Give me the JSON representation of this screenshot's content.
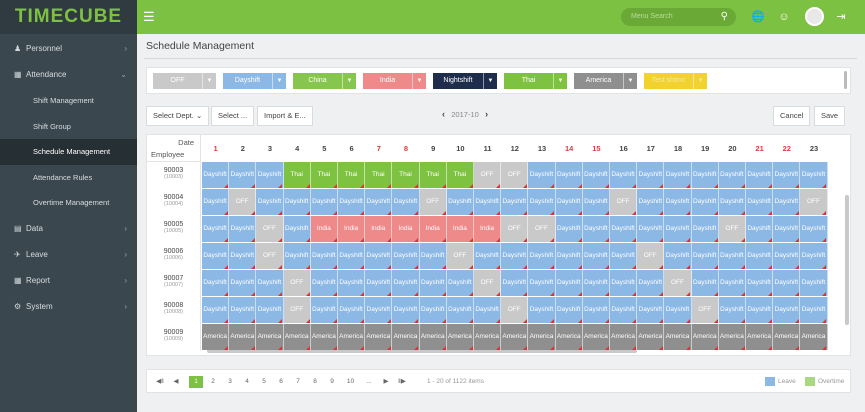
{
  "app": {
    "logo": "TIMECUBE",
    "search_placeholder": "Menu Search"
  },
  "sidebar": {
    "groups": [
      {
        "label": "Personnel",
        "icon": "person-icon"
      },
      {
        "label": "Attendance",
        "icon": "calendar-icon",
        "expanded": true,
        "items": [
          "Shift Management",
          "Shift Group",
          "Schedule Management",
          "Attendance Rules",
          "Overtime Management"
        ],
        "active_item": "Schedule Management"
      },
      {
        "label": "Data",
        "icon": "clipboard-icon"
      },
      {
        "label": "Leave",
        "icon": "plane-icon"
      },
      {
        "label": "Report",
        "icon": "table-icon"
      },
      {
        "label": "System",
        "icon": "gear-icon"
      }
    ]
  },
  "page": {
    "title": "Schedule Management"
  },
  "shifts": [
    {
      "label": "OFF",
      "color": "#c9c9c9"
    },
    {
      "label": "Dayshift",
      "color": "#8cb8e6"
    },
    {
      "label": "China",
      "color": "#86c54e"
    },
    {
      "label": "India",
      "color": "#ee8a8a"
    },
    {
      "label": "Nightshift",
      "color": "#1f2d4d"
    },
    {
      "label": "Thai",
      "color": "#7ec242"
    },
    {
      "label": "America",
      "color": "#8f8f8f"
    },
    {
      "label": "Test shtmc",
      "color": "#f2d22f"
    }
  ],
  "toolbar": {
    "dept_label": "Select Dept.",
    "select_label": "Select ...",
    "import_label": "Import & E...",
    "month": "2017-10",
    "cancel_label": "Cancel",
    "save_label": "Save"
  },
  "schedule": {
    "corner_date": "Date",
    "corner_employee": "Employee",
    "days": [
      "1",
      "2",
      "3",
      "4",
      "5",
      "6",
      "7",
      "8",
      "9",
      "10",
      "11",
      "12",
      "13",
      "14",
      "15",
      "16",
      "17",
      "18",
      "19",
      "20",
      "21",
      "22",
      "23"
    ],
    "weekend_days": [
      "1",
      "7",
      "8",
      "14",
      "15",
      "21",
      "22"
    ],
    "employees": [
      {
        "id": "90003",
        "sub": "(10003)"
      },
      {
        "id": "90004",
        "sub": "(10004)"
      },
      {
        "id": "90005",
        "sub": "(10005)"
      },
      {
        "id": "90006",
        "sub": "(10006)"
      },
      {
        "id": "90007",
        "sub": "(10007)"
      },
      {
        "id": "90008",
        "sub": "(10008)"
      },
      {
        "id": "90009",
        "sub": "(10009)"
      }
    ],
    "rows": [
      [
        "Dayshift",
        "Dayshift",
        "Dayshift",
        "Thai",
        "Thai",
        "Thai",
        "Thai",
        "Thai",
        "Thai",
        "Thai",
        "OFF",
        "OFF",
        "Dayshift",
        "Dayshift",
        "Dayshift",
        "Dayshift",
        "Dayshift",
        "Dayshift",
        "Dayshift",
        "Dayshift",
        "Dayshift",
        "Dayshift",
        "Dayshift"
      ],
      [
        "Dayshift",
        "OFF",
        "Dayshift",
        "Dayshift",
        "Dayshift",
        "Dayshift",
        "Dayshift",
        "Dayshift",
        "OFF",
        "Dayshift",
        "Dayshift",
        "Dayshift",
        "Dayshift",
        "Dayshift",
        "Dayshift",
        "OFF",
        "Dayshift",
        "Dayshift",
        "Dayshift",
        "Dayshift",
        "Dayshift",
        "Dayshift",
        "OFF"
      ],
      [
        "Dayshift",
        "Dayshift",
        "OFF",
        "Dayshift",
        "India",
        "India",
        "India",
        "India",
        "India",
        "India",
        "India",
        "OFF",
        "OFF",
        "Dayshift",
        "Dayshift",
        "Dayshift",
        "Dayshift",
        "Dayshift",
        "Dayshift",
        "OFF",
        "Dayshift",
        "Dayshift",
        "Dayshift"
      ],
      [
        "Dayshift",
        "Dayshift",
        "OFF",
        "Dayshift",
        "Dayshift",
        "Dayshift",
        "Dayshift",
        "Dayshift",
        "Dayshift",
        "OFF",
        "Dayshift",
        "Dayshift",
        "Dayshift",
        "Dayshift",
        "Dayshift",
        "Dayshift",
        "OFF",
        "Dayshift",
        "Dayshift",
        "Dayshift",
        "Dayshift",
        "Dayshift",
        "Dayshift"
      ],
      [
        "Dayshift",
        "Dayshift",
        "Dayshift",
        "OFF",
        "Dayshift",
        "Dayshift",
        "Dayshift",
        "Dayshift",
        "Dayshift",
        "Dayshift",
        "OFF",
        "Dayshift",
        "Dayshift",
        "Dayshift",
        "Dayshift",
        "Dayshift",
        "Dayshift",
        "OFF",
        "Dayshift",
        "Dayshift",
        "Dayshift",
        "Dayshift",
        "Dayshift"
      ],
      [
        "Dayshift",
        "Dayshift",
        "Dayshift",
        "OFF",
        "Dayshift",
        "Dayshift",
        "Dayshift",
        "Dayshift",
        "Dayshift",
        "Dayshift",
        "Dayshift",
        "OFF",
        "Dayshift",
        "Dayshift",
        "Dayshift",
        "Dayshift",
        "Dayshift",
        "Dayshift",
        "OFF",
        "Dayshift",
        "Dayshift",
        "Dayshift",
        "Dayshift"
      ],
      [
        "America",
        "America",
        "America",
        "America",
        "America",
        "America",
        "America",
        "America",
        "America",
        "America",
        "America",
        "America",
        "America",
        "America",
        "America",
        "America",
        "America",
        "America",
        "America",
        "America",
        "America",
        "America",
        "America"
      ]
    ]
  },
  "pager": {
    "pages": [
      "1",
      "2",
      "3",
      "4",
      "5",
      "6",
      "7",
      "8",
      "9",
      "10",
      "..."
    ],
    "current": "1",
    "info": "1 - 20 of 1122 items"
  },
  "legend": [
    {
      "label": "Leave",
      "color": "#8cb8e6"
    },
    {
      "label": "Overtime",
      "color": "#a8d884"
    }
  ]
}
